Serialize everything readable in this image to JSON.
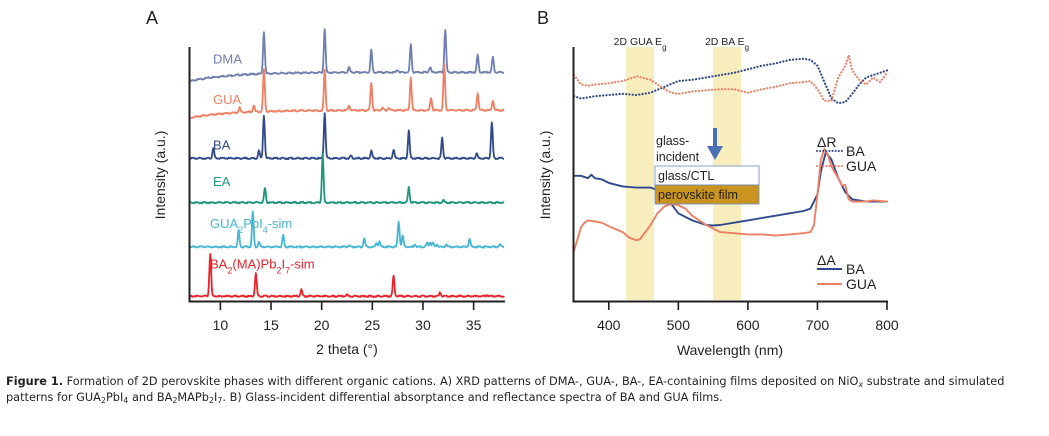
{
  "figure": {
    "caption_label": "Figure 1.",
    "caption_parts": [
      {
        "t": " Formation of 2D perovskite phases with different organic cations. A) XRD patterns of DMA-, GUA-, BA-, EA-containing films deposited on NiO"
      },
      {
        "t": "x",
        "style": "sub-italic"
      },
      {
        "t": " substrate and simulated patterns for GUA"
      },
      {
        "t": "2",
        "style": "sub"
      },
      {
        "t": "PbI"
      },
      {
        "t": "4",
        "style": "sub"
      },
      {
        "t": " and BA"
      },
      {
        "t": "2",
        "style": "sub"
      },
      {
        "t": "MAPb"
      },
      {
        "t": "2",
        "style": "sub"
      },
      {
        "t": "I"
      },
      {
        "t": "7",
        "style": "sub"
      },
      {
        "t": ". B) Glass-incident differential absorptance and reflectance spectra of BA and GUA films."
      }
    ]
  },
  "chart_data": [
    {
      "panel": "A",
      "type": "line",
      "title": "",
      "xlabel": "2 theta (°)",
      "ylabel": "Intensity (a.u.)",
      "xlim": [
        7,
        38
      ],
      "xticks": [
        10,
        15,
        20,
        25,
        30,
        35
      ],
      "yticks": [],
      "grid": false,
      "series": [
        {
          "name": "DMA",
          "label": "DMA",
          "color": "#6f7fb0",
          "baseline": 0.9,
          "slope": -0.035,
          "peaks": [
            [
              14.3,
              0.165
            ],
            [
              20.3,
              0.175
            ],
            [
              22.7,
              0.02
            ],
            [
              24.9,
              0.09
            ],
            [
              27.5,
              0.01
            ],
            [
              28.8,
              0.11
            ],
            [
              30.7,
              0.02
            ],
            [
              32.2,
              0.17
            ],
            [
              35.4,
              0.07
            ],
            [
              36.9,
              0.06
            ]
          ]
        },
        {
          "name": "GUA",
          "label": "GUA",
          "color": "#ee7f63",
          "baseline": 0.75,
          "slope": -0.03,
          "peaks": [
            [
              11.9,
              0.02
            ],
            [
              13.3,
              0.025
            ],
            [
              14.3,
              0.165
            ],
            [
              20.3,
              0.16
            ],
            [
              22.7,
              0.02
            ],
            [
              24.9,
              0.11
            ],
            [
              26.0,
              0.01
            ],
            [
              26.6,
              0.01
            ],
            [
              28.8,
              0.13
            ],
            [
              30.8,
              0.05
            ],
            [
              32.1,
              0.18
            ],
            [
              35.4,
              0.07
            ],
            [
              36.9,
              0.04
            ]
          ]
        },
        {
          "name": "BA",
          "label": "BA",
          "color": "#2e4a8a",
          "baseline": 0.56,
          "slope": 0.0,
          "peaks": [
            [
              9.3,
              0.04
            ],
            [
              13.8,
              0.03
            ],
            [
              14.3,
              0.17
            ],
            [
              20.3,
              0.18
            ],
            [
              22.9,
              0.01
            ],
            [
              24.9,
              0.03
            ],
            [
              27.1,
              0.035
            ],
            [
              28.6,
              0.11
            ],
            [
              31.9,
              0.08
            ],
            [
              35.3,
              0.02
            ],
            [
              36.8,
              0.14
            ]
          ]
        },
        {
          "name": "EA",
          "label": "EA",
          "color": "#1e9580",
          "baseline": 0.385,
          "slope": 0.0,
          "peaks": [
            [
              14.4,
              0.055
            ],
            [
              20.1,
              0.19
            ],
            [
              28.6,
              0.06
            ],
            [
              32.0,
              0.01
            ]
          ]
        },
        {
          "name": "GUA2PbI4-sim",
          "label_parts": [
            "GUA",
            "2",
            "PbI",
            "4",
            "-sim"
          ],
          "color": "#45b7d4",
          "baseline": 0.21,
          "slope": 0.0,
          "peaks": [
            [
              11.8,
              0.065
            ],
            [
              13.2,
              0.14
            ],
            [
              13.8,
              0.02
            ],
            [
              16.2,
              0.045
            ],
            [
              22.7,
              0.005
            ],
            [
              24.2,
              0.035
            ],
            [
              25.4,
              0.015
            ],
            [
              25.7,
              0.02
            ],
            [
              27.6,
              0.1
            ],
            [
              28.0,
              0.045
            ],
            [
              29.2,
              0.01
            ],
            [
              30.4,
              0.015
            ],
            [
              30.7,
              0.02
            ],
            [
              31.0,
              0.015
            ],
            [
              31.4,
              0.01
            ],
            [
              32.3,
              0.01
            ],
            [
              34.6,
              0.03
            ],
            [
              37.6,
              0.01
            ]
          ]
        },
        {
          "name": "BA2(MA)Pb2I7-sim",
          "label_parts": [
            "BA",
            "2",
            "(MA)Pb",
            "2",
            "I",
            "7",
            "-sim"
          ],
          "color": "#e8232a",
          "baseline": 0.015,
          "slope": 0.0,
          "peaks": [
            [
              9.0,
              0.17
            ],
            [
              13.5,
              0.09
            ],
            [
              18.0,
              0.025
            ],
            [
              22.5,
              0.005
            ],
            [
              27.1,
              0.08
            ],
            [
              31.7,
              0.015
            ],
            [
              36.3,
              0.005
            ]
          ]
        }
      ]
    },
    {
      "panel": "B",
      "type": "line",
      "title": "",
      "xlabel": "Wavelength (nm)",
      "ylabel": "Intensity (a.u.)",
      "xlim": [
        350,
        800
      ],
      "xticks": [
        400,
        500,
        600,
        700,
        800
      ],
      "yticks": [],
      "grid": false,
      "bands": [
        {
          "label": "2D GUA E",
          "sub": "g",
          "range": [
            425,
            465
          ],
          "color": "#f8edbd"
        },
        {
          "label": "2D BA E",
          "sub": "g",
          "range": [
            550,
            590
          ],
          "color": "#f8edbd"
        }
      ],
      "annotation": {
        "text_lines": [
          "glass-",
          "incident"
        ],
        "arrow_color": "#4a6fb5",
        "stack": [
          {
            "label": "glass/CTL",
            "fill": "#ffffff",
            "border": "#6a8ac0"
          },
          {
            "label": "perovskite film",
            "fill": "#c9941f",
            "border": "#6a8ac0"
          }
        ]
      },
      "legends": [
        {
          "title": "ΔR",
          "style": "dotted",
          "entries": [
            {
              "name": "BA",
              "color": "#2e4a8a"
            },
            {
              "name": "GUA",
              "color": "#ee7f63"
            }
          ]
        },
        {
          "title": "ΔA",
          "style": "solid",
          "entries": [
            {
              "name": "BA",
              "color": "#2e4a8a"
            },
            {
              "name": "GUA",
              "color": "#ee7f63"
            }
          ]
        }
      ],
      "series": [
        {
          "name": "ΔR BA",
          "style": "dotted",
          "color": "#2e4a8a",
          "x": [
            350,
            360,
            370,
            380,
            400,
            420,
            440,
            460,
            480,
            500,
            520,
            540,
            560,
            580,
            600,
            620,
            640,
            660,
            680,
            690,
            700,
            710,
            720,
            730,
            740,
            750,
            760,
            770,
            780,
            790,
            800
          ],
          "y": [
            0.87,
            0.86,
            0.865,
            0.87,
            0.875,
            0.88,
            0.875,
            0.885,
            0.91,
            0.935,
            0.94,
            0.95,
            0.96,
            0.97,
            0.985,
            1.0,
            1.01,
            1.025,
            1.03,
            1.025,
            1.0,
            0.93,
            0.86,
            0.84,
            0.845,
            0.88,
            0.92,
            0.95,
            0.96,
            0.97,
            0.98
          ]
        },
        {
          "name": "ΔR GUA",
          "style": "dotted",
          "color": "#ee7f63",
          "x": [
            350,
            360,
            370,
            380,
            400,
            420,
            440,
            460,
            480,
            490,
            500,
            520,
            540,
            560,
            580,
            600,
            620,
            640,
            660,
            680,
            690,
            700,
            710,
            720,
            725,
            730,
            740,
            745,
            750,
            760,
            770,
            780,
            790,
            800
          ],
          "y": [
            0.96,
            0.92,
            0.915,
            0.92,
            0.925,
            0.935,
            0.955,
            0.94,
            0.9,
            0.885,
            0.88,
            0.89,
            0.895,
            0.9,
            0.9,
            0.885,
            0.9,
            0.91,
            0.925,
            0.93,
            0.935,
            0.9,
            0.85,
            0.85,
            0.9,
            0.95,
            1.0,
            1.045,
            0.98,
            0.94,
            0.92,
            0.95,
            0.93,
            0.97
          ]
        },
        {
          "name": "ΔA BA",
          "style": "solid",
          "color": "#2e4a8a",
          "x": [
            350,
            360,
            370,
            375,
            380,
            390,
            400,
            420,
            440,
            460,
            470,
            480,
            490,
            500,
            520,
            540,
            550,
            560,
            580,
            600,
            620,
            640,
            660,
            680,
            690,
            700,
            705,
            712,
            720,
            730,
            740,
            750,
            760,
            770,
            780,
            800
          ],
          "y": [
            0.53,
            0.53,
            0.52,
            0.535,
            0.52,
            0.515,
            0.5,
            0.485,
            0.48,
            0.48,
            0.47,
            0.45,
            0.41,
            0.37,
            0.34,
            0.32,
            0.318,
            0.32,
            0.33,
            0.34,
            0.35,
            0.36,
            0.37,
            0.38,
            0.39,
            0.45,
            0.55,
            0.63,
            0.6,
            0.52,
            0.46,
            0.43,
            0.425,
            0.42,
            0.42,
            0.42
          ]
        },
        {
          "name": "ΔA GUA",
          "style": "solid",
          "color": "#ee7f63",
          "x": [
            350,
            355,
            360,
            365,
            370,
            380,
            390,
            400,
            420,
            430,
            440,
            445,
            450,
            460,
            470,
            480,
            490,
            500,
            510,
            520,
            540,
            560,
            580,
            600,
            620,
            640,
            660,
            680,
            690,
            695,
            700,
            705,
            710,
            715,
            720,
            730,
            735,
            740,
            745,
            750,
            760,
            770,
            780,
            800
          ],
          "y": [
            0.21,
            0.26,
            0.31,
            0.33,
            0.34,
            0.335,
            0.33,
            0.315,
            0.29,
            0.265,
            0.255,
            0.26,
            0.28,
            0.32,
            0.37,
            0.4,
            0.41,
            0.405,
            0.39,
            0.36,
            0.32,
            0.29,
            0.285,
            0.28,
            0.28,
            0.275,
            0.28,
            0.285,
            0.29,
            0.32,
            0.45,
            0.6,
            0.645,
            0.62,
            0.57,
            0.52,
            0.49,
            0.49,
            0.43,
            0.42,
            0.42,
            0.42,
            0.425,
            0.42
          ]
        }
      ]
    }
  ],
  "panel_labels": [
    "A",
    "B"
  ]
}
